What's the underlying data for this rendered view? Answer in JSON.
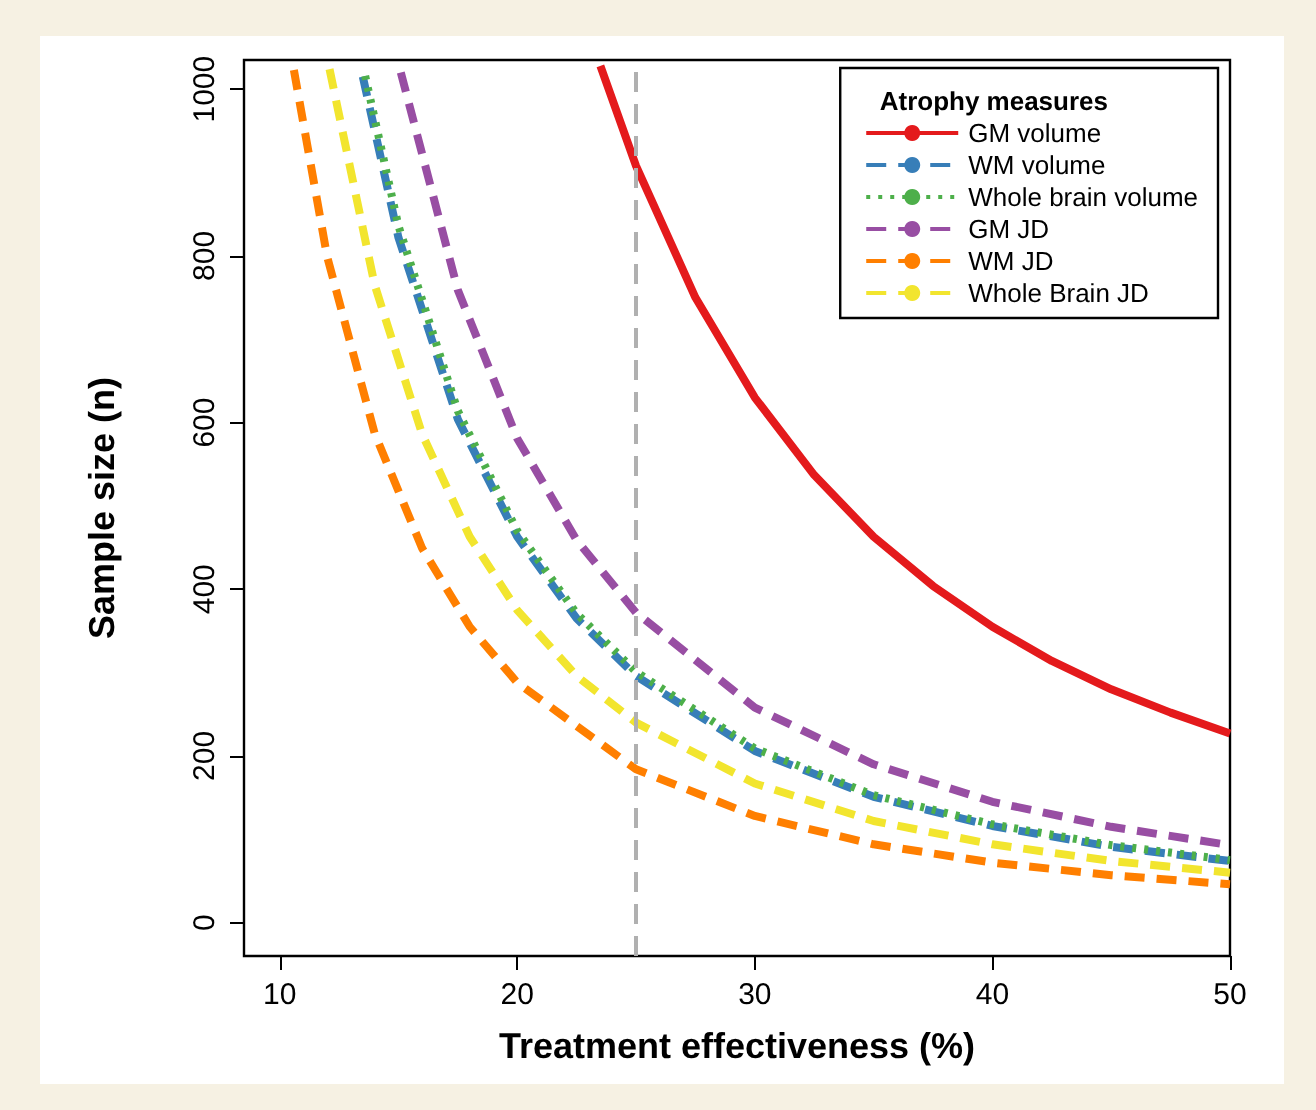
{
  "chart_data": {
    "type": "line",
    "xlabel": "Treatment effectiveness (%)",
    "ylabel": "Sample size (n)",
    "legend_title": "Atrophy measures",
    "legend": "top right",
    "grid": false,
    "marker": "none",
    "xlim": [
      8.5,
      50
    ],
    "xticks": [
      10,
      20,
      30,
      40,
      50
    ],
    "ylim": [
      -40,
      1035
    ],
    "yticks": [
      0,
      200,
      400,
      600,
      800,
      1000
    ],
    "ref_lines": [
      {
        "axis": "x",
        "value": 25,
        "color": "#b0b0b0",
        "line_style": "dashed"
      }
    ],
    "series": [
      {
        "name": "GM volume",
        "color": "#e41a1c",
        "line_style": "solid",
        "x": [
          23.5,
          25,
          27.5,
          30,
          32.5,
          35,
          37.5,
          40,
          42.5,
          45,
          47.5,
          50
        ],
        "values": [
          1028,
          908,
          750,
          630,
          537,
          463,
          404,
          355,
          314,
          280,
          252,
          227
        ]
      },
      {
        "name": "WM volume",
        "color": "#377eb8",
        "line_style": "dashed",
        "x": [
          13.5,
          15,
          17.5,
          20,
          22.5,
          25,
          30,
          35,
          40,
          45,
          50
        ],
        "values": [
          1015,
          822,
          604,
          463,
          365,
          296,
          206,
          151,
          116,
          91,
          74
        ]
      },
      {
        "name": "Whole brain volume",
        "color": "#4daf4a",
        "line_style": "dotted",
        "x": [
          13.6,
          15,
          17.5,
          20,
          22.5,
          25,
          30,
          35,
          40,
          45,
          50
        ],
        "values": [
          1016,
          836,
          614,
          470,
          371,
          301,
          209,
          153,
          118,
          93,
          75
        ]
      },
      {
        "name": "GM JD",
        "color": "#984ea3",
        "line_style": "dashed",
        "x": [
          15.1,
          17.5,
          20,
          22.5,
          25,
          30,
          35,
          40,
          45,
          50
        ],
        "values": [
          1020,
          759,
          581,
          459,
          372,
          258,
          190,
          145,
          115,
          93
        ]
      },
      {
        "name": "WM JD",
        "color": "#ff7f00",
        "line_style": "dashed",
        "x": [
          10.6,
          12,
          14,
          16,
          18,
          20,
          25,
          30,
          35,
          40,
          45,
          50
        ],
        "values": [
          1023,
          799,
          587,
          449,
          355,
          288,
          184,
          128,
          94,
          72,
          57,
          46
        ]
      },
      {
        "name": "Whole Brain JD",
        "color": "#f2e52e",
        "line_style": "dashed",
        "x": [
          12.1,
          14,
          16,
          18,
          20,
          22.5,
          25,
          30,
          35,
          40,
          45,
          50
        ],
        "values": [
          1024,
          765,
          586,
          463,
          375,
          296,
          240,
          167,
          122,
          94,
          74,
          60
        ]
      }
    ]
  }
}
